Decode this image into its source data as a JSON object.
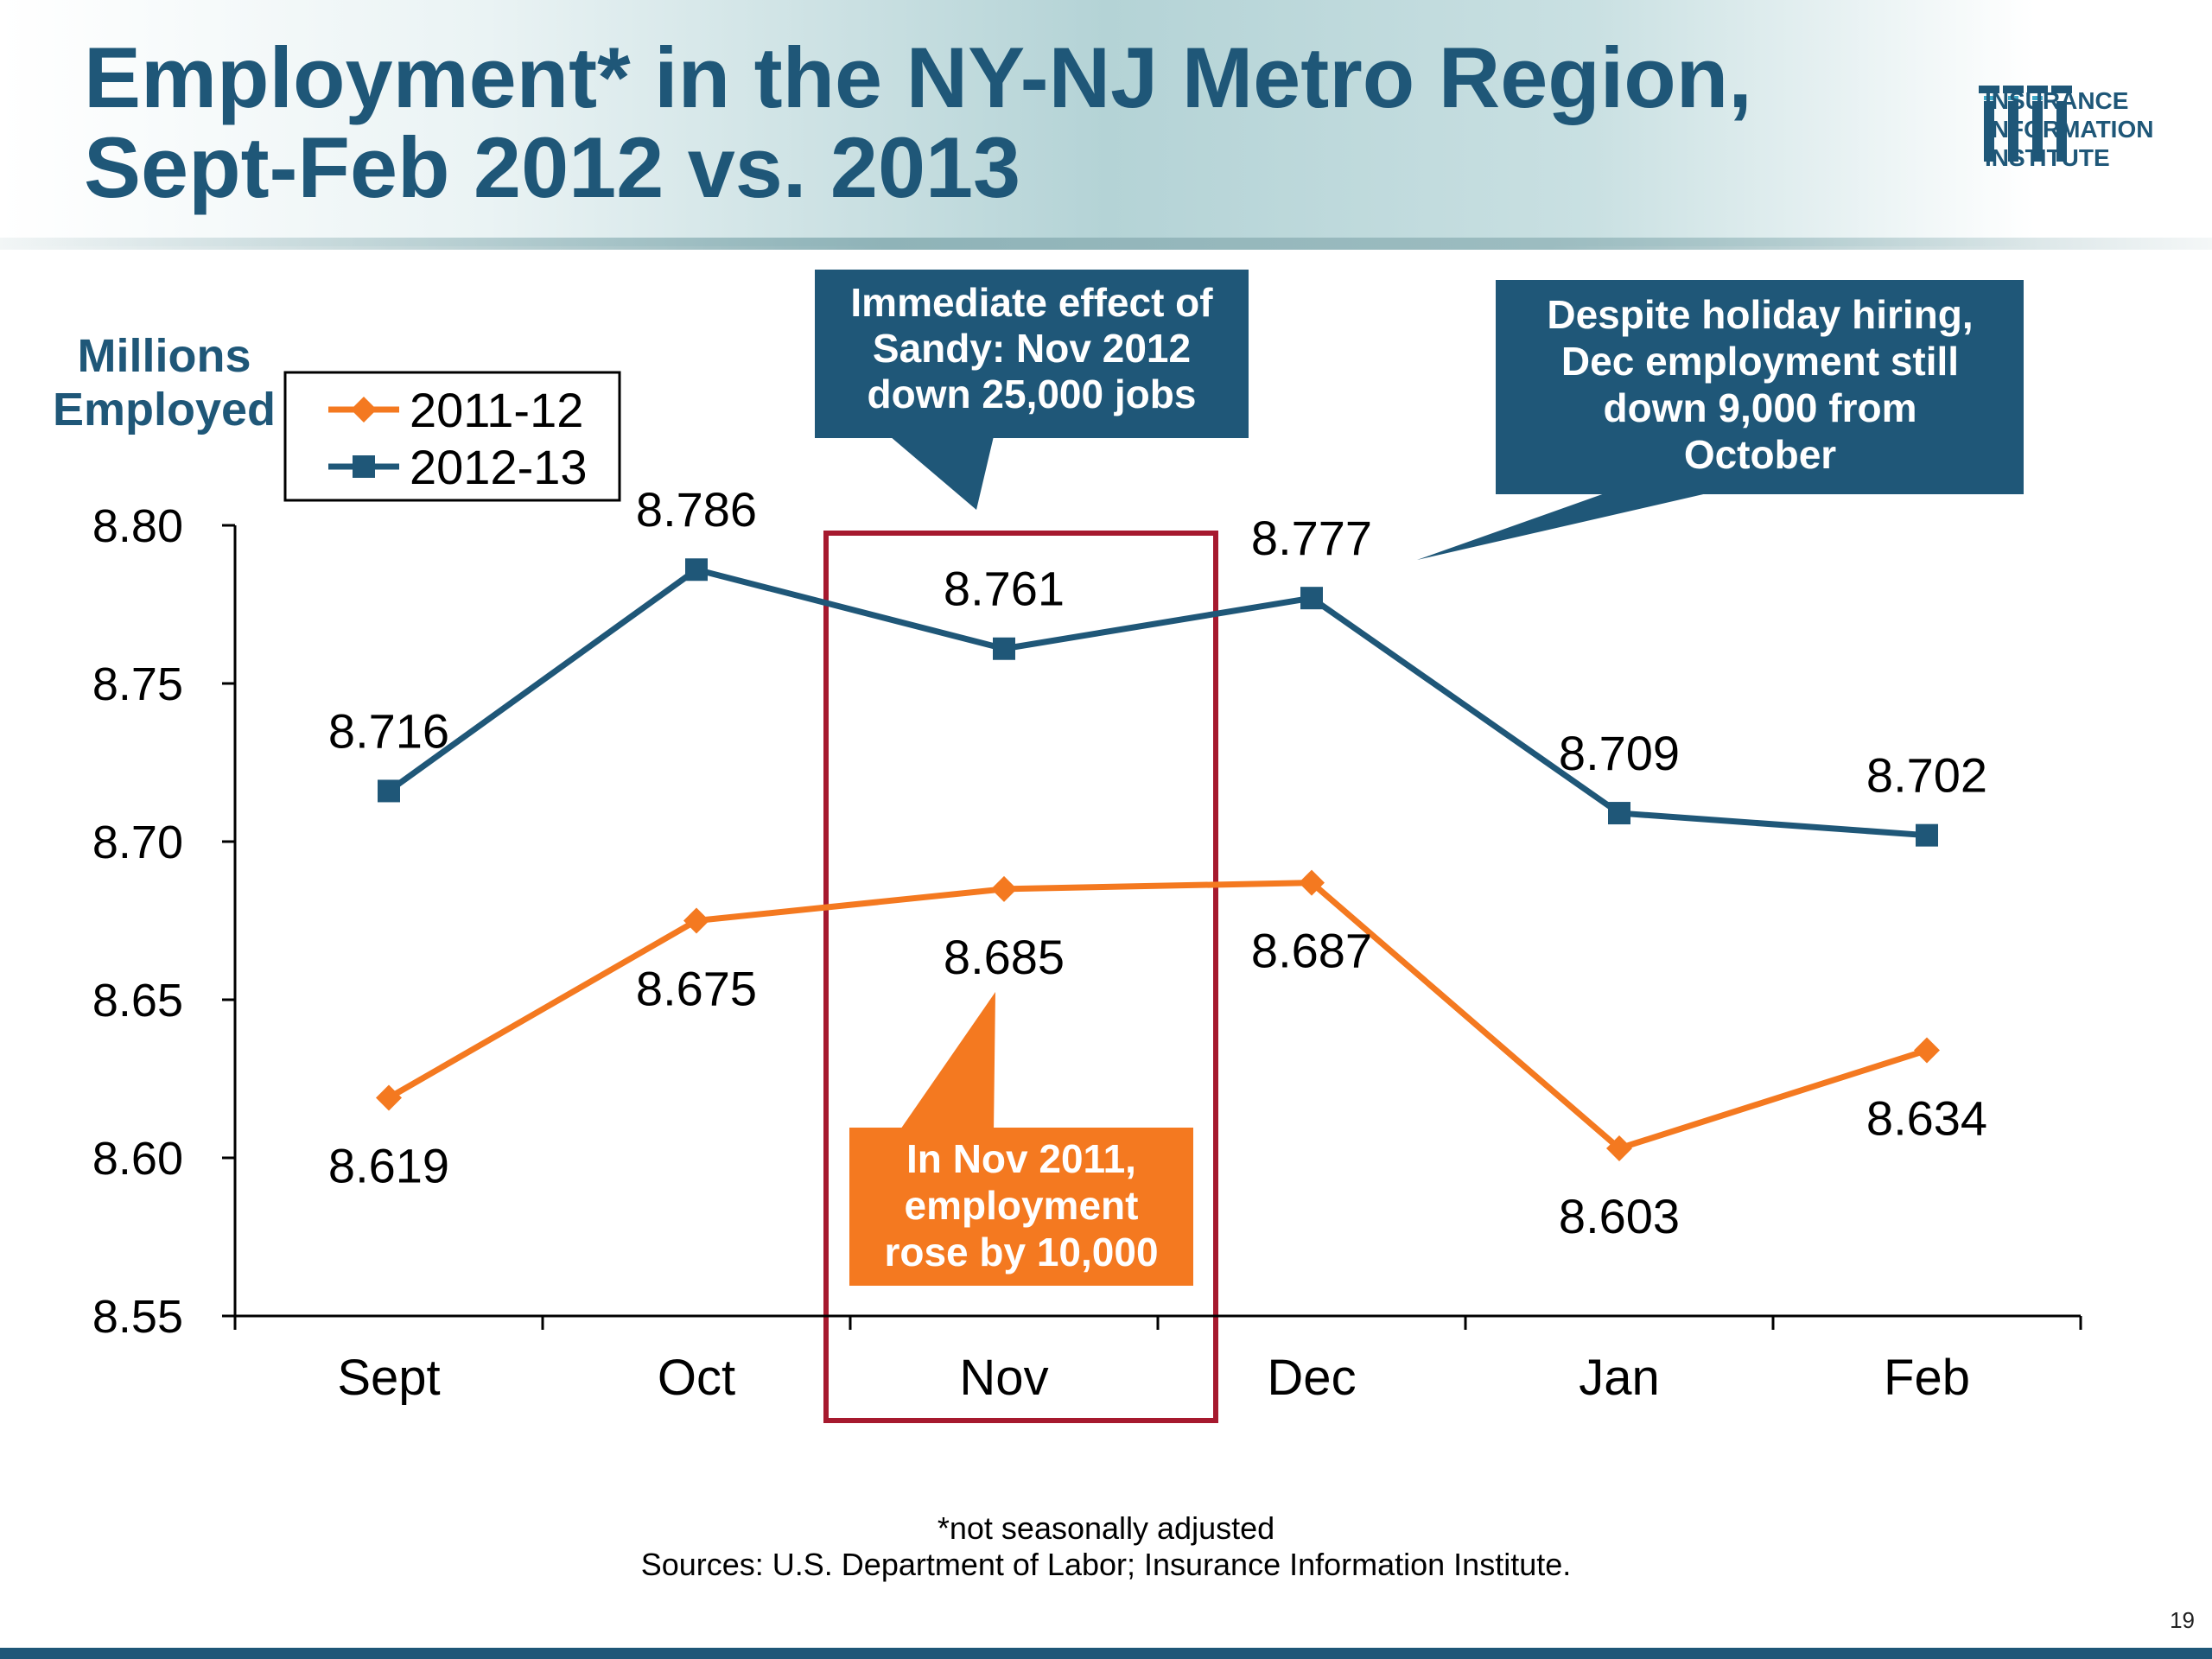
{
  "slide": {
    "title_line1": "Employment* in the NY-NJ Metro Region,",
    "title_line2": "Sept-Feb 2012 vs. 2013",
    "logo": {
      "line1": "INSURANCE",
      "line2": "INFORMATION",
      "line3": "INSTITUTE"
    },
    "footnote_1": "*not seasonally adjusted",
    "footnote_2": "Sources: U.S. Department of Labor; Insurance Information Institute.",
    "page_number": "19"
  },
  "chart_data": {
    "type": "line",
    "title": "Employment* in the NY-NJ Metro Region, Sept-Feb 2012 vs. 2013",
    "ylabel": "Millions Employed",
    "ylabel_lines": [
      "Millions",
      "Employed"
    ],
    "xlabel": "",
    "categories": [
      "Sept",
      "Oct",
      "Nov",
      "Dec",
      "Jan",
      "Feb"
    ],
    "ylim": [
      8.55,
      8.8
    ],
    "yticks": [
      "8.55",
      "8.60",
      "8.65",
      "8.70",
      "8.75",
      "8.80"
    ],
    "grid": false,
    "legend_position": "top-left",
    "series": [
      {
        "name": "2011-12",
        "color": "#f47920",
        "marker": "diamond",
        "values": [
          8.619,
          8.675,
          8.685,
          8.687,
          8.603,
          8.634
        ],
        "labels": [
          "8.619",
          "8.675",
          "8.685",
          "8.687",
          "8.603",
          "8.634"
        ],
        "label_side": [
          "below",
          "below",
          "below",
          "below",
          "below",
          "below"
        ]
      },
      {
        "name": "2012-13",
        "color": "#1f5778",
        "marker": "square",
        "values": [
          8.716,
          8.786,
          8.761,
          8.777,
          8.709,
          8.702
        ],
        "labels": [
          "8.716",
          "8.786",
          "8.761",
          "8.777",
          "8.709",
          "8.702"
        ],
        "label_side": [
          "above",
          "above",
          "above",
          "above",
          "above",
          "above"
        ]
      }
    ],
    "highlight": {
      "category": "Nov",
      "color": "#a6192e"
    },
    "annotations": [
      {
        "id": "sandy",
        "lines": [
          "Immediate effect of",
          "Sandy:  Nov 2012",
          "down 25,000 jobs"
        ],
        "color": "#1f5778",
        "text_color": "#ffffff"
      },
      {
        "id": "holiday",
        "lines": [
          "Despite holiday hiring,",
          "Dec employment still",
          "down 9,000 from",
          "October"
        ],
        "color": "#1f5778",
        "text_color": "#ffffff"
      },
      {
        "id": "nov2011",
        "lines": [
          "In Nov 2011,",
          "employment",
          "rose by 10,000"
        ],
        "color": "#f47920",
        "text_color": "#ffffff"
      }
    ]
  }
}
